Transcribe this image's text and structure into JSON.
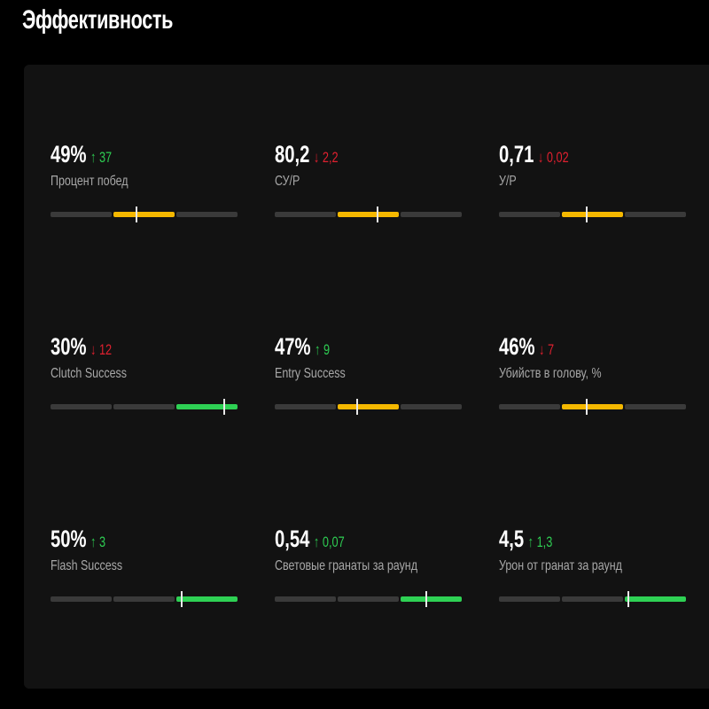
{
  "title": "Эффективность",
  "colors": {
    "yellow": "#f5b800",
    "green": "#2ed154",
    "up": "#2ecc52",
    "down": "#e0202f",
    "inactive": "#3a3a3a"
  },
  "metrics": [
    {
      "value": "49%",
      "delta": "37",
      "direction": "up",
      "label": "Процент побед",
      "active_segment": 1,
      "color": "yellow",
      "level": 0.46
    },
    {
      "value": "80,2",
      "delta": "2,2",
      "direction": "down",
      "label": "СУ/Р",
      "active_segment": 1,
      "color": "yellow",
      "level": 0.55
    },
    {
      "value": "0,71",
      "delta": "0,02",
      "direction": "down",
      "label": "У/Р",
      "active_segment": 1,
      "color": "yellow",
      "level": 0.47
    },
    {
      "value": "30%",
      "delta": "12",
      "direction": "down",
      "label": "Clutch Success",
      "active_segment": 2,
      "color": "green",
      "level": 0.93
    },
    {
      "value": "47%",
      "delta": "9",
      "direction": "up",
      "label": "Entry Success",
      "active_segment": 1,
      "color": "yellow",
      "level": 0.44
    },
    {
      "value": "46%",
      "delta": "7",
      "direction": "down",
      "label": "Убийств в голову, %",
      "active_segment": 1,
      "color": "yellow",
      "level": 0.47
    },
    {
      "value": "50%",
      "delta": "3",
      "direction": "up",
      "label": "Flash Success",
      "active_segment": 2,
      "color": "green",
      "level": 0.7
    },
    {
      "value": "0,54",
      "delta": "0,07",
      "direction": "up",
      "label": "Световые гранаты за раунд",
      "active_segment": 2,
      "color": "green",
      "level": 0.81
    },
    {
      "value": "4,5",
      "delta": "1,3",
      "direction": "up",
      "label": "Урон от гранат за раунд",
      "active_segment": 2,
      "color": "green",
      "level": 0.69
    }
  ]
}
